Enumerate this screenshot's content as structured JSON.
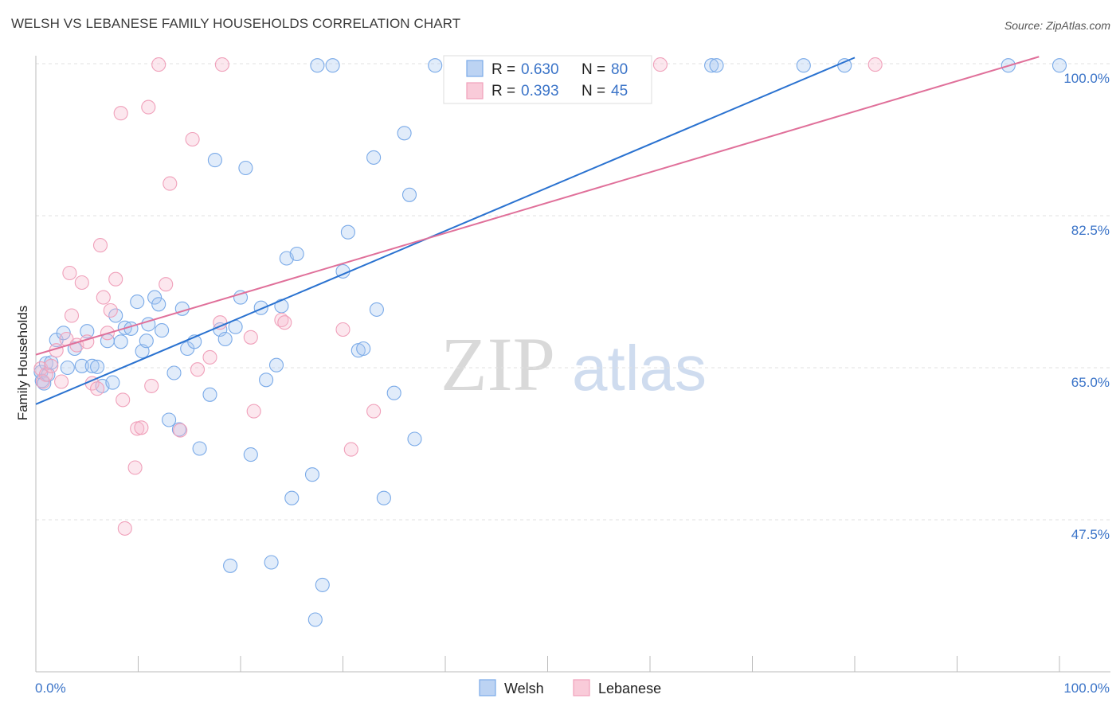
{
  "title": "WELSH VS LEBANESE FAMILY HOUSEHOLDS CORRELATION CHART",
  "source": "Source: ZipAtlas.com",
  "colors": {
    "welsh": "#7aaae8",
    "welsh_line": "#2a72d0",
    "lebanese": "#f0a0ba",
    "lebanese_line": "#e0709a",
    "tick": "#3b74c8"
  },
  "legend": {
    "welsh": {
      "r_label": "R =",
      "r_value": "0.630",
      "n_label": "N =",
      "n_value": "80"
    },
    "lebanese": {
      "r_label": "R =",
      "r_value": "0.393",
      "n_label": "N =",
      "n_value": "45"
    }
  },
  "watermark": {
    "zip": "ZIP",
    "atlas": "atlas"
  },
  "chart_data": {
    "type": "scatter",
    "title": "WELSH VS LEBANESE FAMILY HOUSEHOLDS CORRELATION CHART",
    "xlabel": "",
    "ylabel": "Family Households",
    "xlim": [
      0,
      100
    ],
    "ylim": [
      30,
      101
    ],
    "x_tick_labels": [
      "0.0%",
      "100.0%"
    ],
    "y_ticks": [
      47.5,
      65.0,
      82.5,
      100.0
    ],
    "y_tick_labels": [
      "47.5%",
      "65.0%",
      "82.5%",
      "100.0%"
    ],
    "grid": true,
    "legend_position": "top-center",
    "series": [
      {
        "name": "Welsh",
        "color": "#7aaae8",
        "trend": {
          "x": [
            0,
            80
          ],
          "y": [
            60.8,
            100.7
          ]
        },
        "points": [
          [
            0.5,
            64.5
          ],
          [
            0.6,
            63.5
          ],
          [
            0.8,
            63.2
          ],
          [
            1.0,
            65.5
          ],
          [
            1.2,
            64.2
          ],
          [
            1.5,
            65.6
          ],
          [
            2.0,
            68.2
          ],
          [
            2.7,
            69.0
          ],
          [
            3.1,
            65.0
          ],
          [
            3.8,
            67.2
          ],
          [
            4.5,
            65.2
          ],
          [
            5.0,
            69.2
          ],
          [
            5.5,
            65.2
          ],
          [
            6.0,
            65.1
          ],
          [
            6.5,
            62.9
          ],
          [
            7.0,
            68.1
          ],
          [
            7.5,
            63.3
          ],
          [
            7.8,
            71.0
          ],
          [
            8.3,
            68.0
          ],
          [
            8.7,
            69.6
          ],
          [
            9.3,
            69.5
          ],
          [
            9.9,
            72.6
          ],
          [
            10.4,
            66.9
          ],
          [
            10.8,
            68.1
          ],
          [
            11.0,
            70.0
          ],
          [
            11.6,
            73.1
          ],
          [
            12.0,
            72.3
          ],
          [
            12.3,
            69.3
          ],
          [
            13.0,
            59.0
          ],
          [
            13.5,
            64.4
          ],
          [
            14.0,
            57.9
          ],
          [
            14.3,
            71.8
          ],
          [
            14.8,
            67.2
          ],
          [
            15.5,
            68.0
          ],
          [
            16.0,
            55.7
          ],
          [
            17.0,
            61.9
          ],
          [
            17.5,
            88.9
          ],
          [
            18.0,
            69.4
          ],
          [
            18.5,
            68.3
          ],
          [
            19.0,
            42.2
          ],
          [
            19.5,
            69.7
          ],
          [
            20.0,
            73.1
          ],
          [
            20.5,
            88.0
          ],
          [
            21.0,
            55.0
          ],
          [
            22.0,
            71.9
          ],
          [
            22.5,
            63.6
          ],
          [
            23.0,
            42.6
          ],
          [
            23.5,
            65.3
          ],
          [
            24.0,
            72.1
          ],
          [
            24.5,
            77.6
          ],
          [
            25.0,
            50.0
          ],
          [
            25.5,
            78.1
          ],
          [
            27.0,
            52.7
          ],
          [
            27.3,
            36.0
          ],
          [
            27.5,
            99.8
          ],
          [
            28.0,
            40.0
          ],
          [
            29.0,
            99.8
          ],
          [
            30.0,
            76.1
          ],
          [
            30.5,
            80.6
          ],
          [
            31.5,
            67.0
          ],
          [
            32.0,
            67.2
          ],
          [
            33.0,
            89.2
          ],
          [
            33.3,
            71.7
          ],
          [
            34.0,
            50.0
          ],
          [
            35.0,
            62.1
          ],
          [
            36.0,
            92.0
          ],
          [
            36.5,
            84.9
          ],
          [
            37.0,
            56.8
          ],
          [
            39.0,
            99.8
          ],
          [
            41.0,
            99.8
          ],
          [
            43.0,
            99.8
          ],
          [
            48.0,
            99.8
          ],
          [
            52.0,
            99.8
          ],
          [
            57.0,
            99.8
          ],
          [
            66.0,
            99.8
          ],
          [
            66.5,
            99.8
          ],
          [
            75.0,
            99.8
          ],
          [
            79.0,
            99.8
          ],
          [
            95.0,
            99.8
          ],
          [
            100.0,
            99.8
          ]
        ]
      },
      {
        "name": "Lebanese",
        "color": "#f0a0ba",
        "trend": {
          "x": [
            0,
            98
          ],
          "y": [
            66.5,
            100.8
          ]
        },
        "points": [
          [
            0.5,
            64.9
          ],
          [
            0.7,
            63.4
          ],
          [
            1.0,
            64.2
          ],
          [
            1.5,
            65.2
          ],
          [
            2.0,
            67.0
          ],
          [
            2.5,
            63.4
          ],
          [
            3.0,
            68.3
          ],
          [
            3.3,
            75.9
          ],
          [
            3.5,
            71.0
          ],
          [
            4.0,
            67.6
          ],
          [
            4.5,
            74.8
          ],
          [
            5.0,
            68.0
          ],
          [
            5.5,
            63.2
          ],
          [
            6.0,
            62.6
          ],
          [
            6.3,
            79.1
          ],
          [
            6.6,
            73.1
          ],
          [
            7.0,
            69.0
          ],
          [
            7.3,
            71.6
          ],
          [
            7.8,
            75.2
          ],
          [
            8.3,
            94.3
          ],
          [
            8.5,
            61.3
          ],
          [
            8.7,
            46.5
          ],
          [
            9.7,
            53.5
          ],
          [
            9.9,
            58.0
          ],
          [
            10.3,
            58.1
          ],
          [
            11.0,
            95.0
          ],
          [
            11.3,
            62.9
          ],
          [
            12.0,
            99.9
          ],
          [
            12.7,
            74.6
          ],
          [
            13.1,
            86.2
          ],
          [
            14.1,
            57.8
          ],
          [
            15.3,
            91.3
          ],
          [
            15.8,
            64.8
          ],
          [
            17.0,
            66.2
          ],
          [
            18.0,
            70.2
          ],
          [
            18.2,
            99.9
          ],
          [
            21.0,
            68.5
          ],
          [
            21.3,
            60.0
          ],
          [
            24.0,
            70.5
          ],
          [
            24.3,
            70.2
          ],
          [
            30.0,
            69.4
          ],
          [
            30.8,
            55.6
          ],
          [
            33.0,
            60.0
          ],
          [
            61.0,
            99.9
          ],
          [
            82.0,
            99.9
          ]
        ]
      }
    ]
  }
}
